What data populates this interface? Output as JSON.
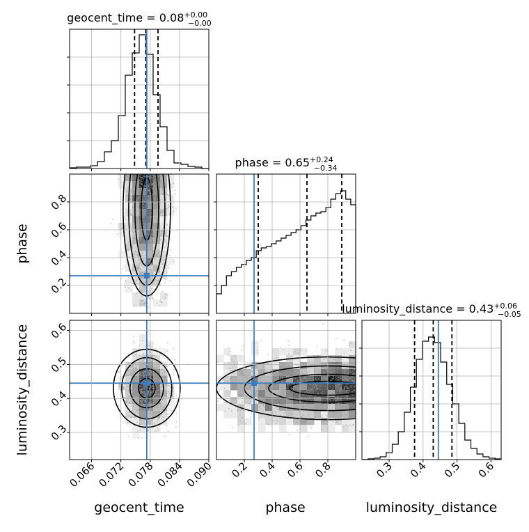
{
  "chart_data": {
    "type": "corner",
    "truth_color": "#3b7cbf",
    "parameters": [
      {
        "name": "geocent_time",
        "axis_label": "geocent_time",
        "range": [
          0.0615,
          0.09
        ],
        "ticks": [
          "0.066",
          "0.072",
          "0.078",
          "0.084",
          "0.090"
        ],
        "tick_values": [
          0.066,
          0.072,
          0.078,
          0.084,
          0.09
        ],
        "title_main": "geocent_time = 0.08",
        "title_sup": "+0.00",
        "title_sub": "−0.00",
        "truth": 0.0773,
        "quantiles": [
          0.0748,
          0.0771,
          0.0796
        ],
        "histogram": [
          0.005,
          0.01,
          0.01,
          0.02,
          0.05,
          0.12,
          0.2,
          0.38,
          0.67,
          0.83,
          0.96,
          0.82,
          0.53,
          0.3,
          0.13,
          0.04,
          0.03,
          0.015,
          0.01,
          0.0
        ]
      },
      {
        "name": "phase",
        "axis_label": "phase",
        "range": [
          0.0,
          1.0
        ],
        "ticks": [
          "0.2",
          "0.4",
          "0.6",
          "0.8"
        ],
        "tick_values": [
          0.2,
          0.4,
          0.6,
          0.8
        ],
        "title_main": "phase = 0.65",
        "title_sup": "+0.24",
        "title_sub": "−0.34",
        "truth": 0.27,
        "quantiles": [
          0.3,
          0.65,
          0.9
        ],
        "histogram": [
          0.14,
          0.2,
          0.27,
          0.3,
          0.33,
          0.35,
          0.38,
          0.4,
          0.45,
          0.47,
          0.48,
          0.5,
          0.52,
          0.54,
          0.56,
          0.58,
          0.6,
          0.63,
          0.67,
          0.7,
          0.72,
          0.73,
          0.76,
          0.82,
          0.86,
          0.88,
          0.82,
          0.78
        ]
      },
      {
        "name": "luminosity_distance",
        "axis_label": "luminosity_distance",
        "range": [
          0.22,
          0.63
        ],
        "ticks": [
          "0.3",
          "0.4",
          "0.5",
          "0.6"
        ],
        "tick_values": [
          0.3,
          0.4,
          0.5,
          0.6
        ],
        "title_main": "luminosity_distance = 0.43",
        "title_sup": "+0.06",
        "title_sub": "−0.05",
        "truth": 0.445,
        "quantiles": [
          0.375,
          0.43,
          0.485
        ],
        "histogram": [
          0.0,
          0.005,
          0.01,
          0.02,
          0.05,
          0.11,
          0.2,
          0.34,
          0.52,
          0.72,
          0.85,
          0.88,
          0.84,
          0.7,
          0.54,
          0.4,
          0.26,
          0.14,
          0.08,
          0.04,
          0.02,
          0.01,
          0.005
        ]
      }
    ],
    "pairs": [
      {
        "x": "geocent_time",
        "y": "phase",
        "row": 1,
        "col": 0
      },
      {
        "x": "geocent_time",
        "y": "luminosity_distance",
        "row": 2,
        "col": 0
      },
      {
        "x": "phase",
        "y": "luminosity_distance",
        "row": 2,
        "col": 1
      }
    ],
    "grid": true,
    "legend": "none"
  }
}
